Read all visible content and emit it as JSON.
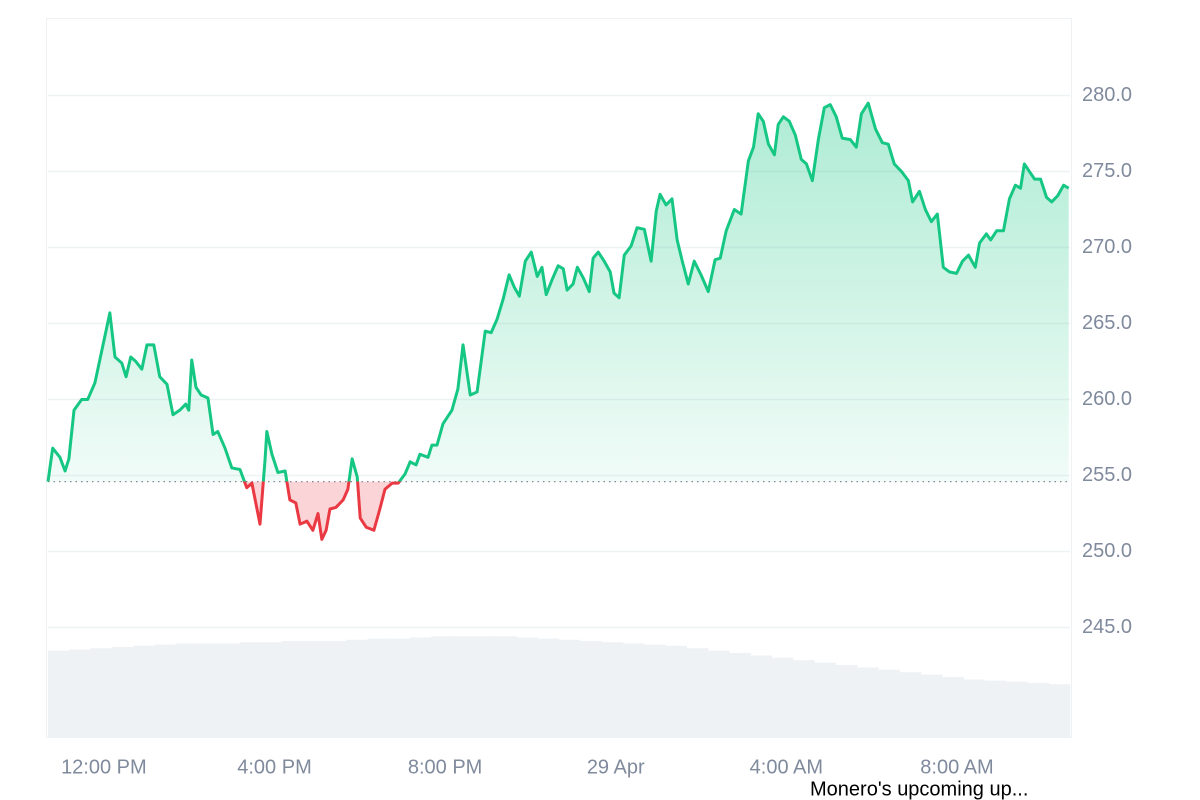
{
  "chart_data": {
    "type": "line",
    "xlim": [
      10.69,
      34.65
    ],
    "xticks": [
      {
        "value": 12,
        "label": "12:00 PM"
      },
      {
        "value": 16,
        "label": "4:00 PM"
      },
      {
        "value": 20,
        "label": "8:00 PM"
      },
      {
        "value": 24,
        "label": "29 Apr"
      },
      {
        "value": 28,
        "label": "4:00 AM"
      },
      {
        "value": 32,
        "label": "8:00 AM"
      }
    ],
    "ylim": [
      237.8,
      285.1
    ],
    "yticks": [
      {
        "value": 245,
        "label": "245.0"
      },
      {
        "value": 250,
        "label": "250.0"
      },
      {
        "value": 255,
        "label": "255.0"
      },
      {
        "value": 260,
        "label": "260.0"
      },
      {
        "value": 265,
        "label": "265.0"
      },
      {
        "value": 270,
        "label": "270.0"
      },
      {
        "value": 275,
        "label": "275.0"
      },
      {
        "value": 280,
        "label": "280.0"
      }
    ],
    "grid": true,
    "baseline": 254.6,
    "series": [
      {
        "color": "#16c784",
        "down_color": "#ea3943",
        "x": [
          10.69,
          10.8,
          10.97,
          11.09,
          11.18,
          11.3,
          11.48,
          11.62,
          11.79,
          11.95,
          12.14,
          12.26,
          12.42,
          12.52,
          12.63,
          12.75,
          12.89,
          13.01,
          13.17,
          13.31,
          13.48,
          13.62,
          13.78,
          13.92,
          13.99,
          14.06,
          14.16,
          14.28,
          14.44,
          14.56,
          14.67,
          14.84,
          15.0,
          15.19,
          15.35,
          15.47,
          15.66,
          15.78,
          15.82,
          15.94,
          16.08,
          16.25,
          16.36,
          16.5,
          16.6,
          16.76,
          16.9,
          17.02,
          17.11,
          17.21,
          17.3,
          17.44,
          17.61,
          17.72,
          17.82,
          17.94,
          18.01,
          18.15,
          18.33,
          18.47,
          18.59,
          18.76,
          18.9,
          19.06,
          19.18,
          19.32,
          19.41,
          19.6,
          19.69,
          19.81,
          19.95,
          20.16,
          20.3,
          20.42,
          20.59,
          20.75,
          20.94,
          21.08,
          21.22,
          21.36,
          21.5,
          21.62,
          21.74,
          21.88,
          22.02,
          22.16,
          22.27,
          22.37,
          22.51,
          22.65,
          22.77,
          22.86,
          23.0,
          23.1,
          23.24,
          23.38,
          23.47,
          23.59,
          23.73,
          23.87,
          23.96,
          24.08,
          24.2,
          24.36,
          24.5,
          24.67,
          24.83,
          24.95,
          25.04,
          25.18,
          25.32,
          25.44,
          25.56,
          25.7,
          25.84,
          26.0,
          26.17,
          26.33,
          26.45,
          26.59,
          26.78,
          26.94,
          27.11,
          27.23,
          27.34,
          27.46,
          27.58,
          27.72,
          27.81,
          27.93,
          28.07,
          28.21,
          28.35,
          28.47,
          28.61,
          28.75,
          28.89,
          29.03,
          29.17,
          29.31,
          29.5,
          29.64,
          29.76,
          29.92,
          30.09,
          30.25,
          30.39,
          30.53,
          30.7,
          30.86,
          30.96,
          31.12,
          31.26,
          31.4,
          31.54,
          31.68,
          31.82,
          31.99,
          32.13,
          32.27,
          32.43,
          32.53,
          32.69,
          32.79,
          32.93,
          33.09,
          33.23,
          33.37,
          33.49,
          33.58,
          33.7,
          33.82,
          33.96,
          34.1,
          34.22,
          34.36,
          34.5,
          34.62
        ],
        "values": [
          254.6,
          256.8,
          256.2,
          255.3,
          256.1,
          259.3,
          260.0,
          260.0,
          261.1,
          263.2,
          265.7,
          262.8,
          262.4,
          261.5,
          262.8,
          262.5,
          262.0,
          263.6,
          263.6,
          261.5,
          261.0,
          259.0,
          259.3,
          259.7,
          259.3,
          262.6,
          260.8,
          260.3,
          260.1,
          257.7,
          257.9,
          256.8,
          255.5,
          255.4,
          254.2,
          254.5,
          251.8,
          256.1,
          257.9,
          256.4,
          255.2,
          255.3,
          253.4,
          253.2,
          251.8,
          252.0,
          251.4,
          252.5,
          250.8,
          251.4,
          252.8,
          252.9,
          253.4,
          254.1,
          256.1,
          254.9,
          252.2,
          251.6,
          251.4,
          252.8,
          254.1,
          254.5,
          254.5,
          255.1,
          255.9,
          255.7,
          256.4,
          256.2,
          257.0,
          257.0,
          258.4,
          259.3,
          260.7,
          263.6,
          260.3,
          260.5,
          264.5,
          264.4,
          265.3,
          266.6,
          268.2,
          267.4,
          266.8,
          269.1,
          269.7,
          268.1,
          268.7,
          266.9,
          267.9,
          268.8,
          268.6,
          267.2,
          267.6,
          268.7,
          268.0,
          267.1,
          269.3,
          269.7,
          269.1,
          268.4,
          267.0,
          266.7,
          269.5,
          270.1,
          271.3,
          271.2,
          269.1,
          272.4,
          273.5,
          272.8,
          273.2,
          270.5,
          269.1,
          267.6,
          269.1,
          268.2,
          267.1,
          269.2,
          269.3,
          271.1,
          272.5,
          272.2,
          275.7,
          276.6,
          278.8,
          278.3,
          276.8,
          276.1,
          278.1,
          278.6,
          278.3,
          277.4,
          275.8,
          275.5,
          274.4,
          277.1,
          279.2,
          279.4,
          278.6,
          277.2,
          277.1,
          276.6,
          278.8,
          279.5,
          277.8,
          276.9,
          276.8,
          275.5,
          275.0,
          274.4,
          273.0,
          273.7,
          272.5,
          271.7,
          272.2,
          268.7,
          268.4,
          268.3,
          269.1,
          269.5,
          268.7,
          270.3,
          270.9,
          270.5,
          271.1,
          271.1,
          273.2,
          274.1,
          273.9,
          275.5,
          275.0,
          274.5,
          274.5,
          273.3,
          273.0,
          273.4,
          274.1,
          273.9
        ]
      }
    ],
    "volume": {
      "color": "#eff2f5",
      "ylim": [
        0,
        100
      ],
      "values": [
        72,
        73,
        74,
        75,
        76,
        77,
        78,
        78,
        78,
        79,
        79,
        80,
        80,
        80,
        81,
        82,
        82,
        83,
        84,
        84,
        84,
        84,
        83,
        82,
        81,
        80,
        79,
        78,
        77,
        76,
        74,
        72,
        70,
        68,
        66,
        64,
        62,
        60,
        58,
        56,
        54,
        52,
        50,
        48,
        47,
        46,
        45,
        44
      ]
    },
    "annotation": "Monero's upcoming up..."
  }
}
